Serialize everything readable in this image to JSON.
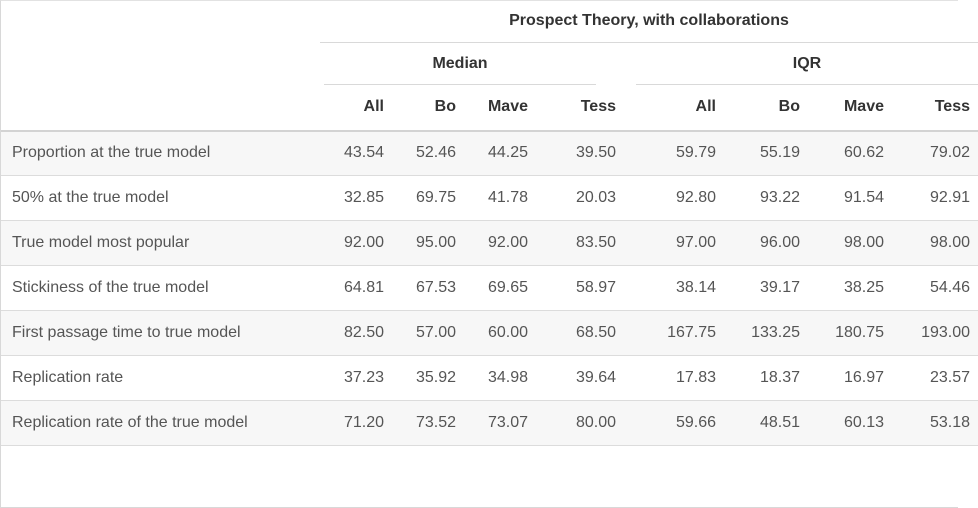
{
  "table": {
    "title": "Prospect Theory, with collaborations",
    "groups": [
      {
        "label": "Median"
      },
      {
        "label": "IQR"
      }
    ],
    "columns": [
      "All",
      "Bo",
      "Mave",
      "Tess",
      "All",
      "Bo",
      "Mave",
      "Tess"
    ],
    "rows": [
      {
        "label": "Proportion at the true model",
        "values": [
          "43.54",
          "52.46",
          "44.25",
          "39.50",
          "59.79",
          "55.19",
          "60.62",
          "79.02"
        ]
      },
      {
        "label": "50% at the true model",
        "values": [
          "32.85",
          "69.75",
          "41.78",
          "20.03",
          "92.80",
          "93.22",
          "91.54",
          "92.91"
        ]
      },
      {
        "label": "True model most popular",
        "values": [
          "92.00",
          "95.00",
          "92.00",
          "83.50",
          "97.00",
          "96.00",
          "98.00",
          "98.00"
        ]
      },
      {
        "label": "Stickiness of the true model",
        "values": [
          "64.81",
          "67.53",
          "69.65",
          "58.97",
          "38.14",
          "39.17",
          "38.25",
          "54.46"
        ]
      },
      {
        "label": "First passage time to true model",
        "values": [
          "82.50",
          "57.00",
          "60.00",
          "68.50",
          "167.75",
          "133.25",
          "180.75",
          "193.00"
        ]
      },
      {
        "label": "Replication rate",
        "values": [
          "37.23",
          "35.92",
          "34.98",
          "39.64",
          "17.83",
          "18.37",
          "16.97",
          "23.57"
        ]
      },
      {
        "label": "Replication rate of the true model",
        "values": [
          "71.20",
          "73.52",
          "73.07",
          "80.00",
          "59.66",
          "48.51",
          "60.13",
          "53.18"
        ]
      }
    ]
  }
}
